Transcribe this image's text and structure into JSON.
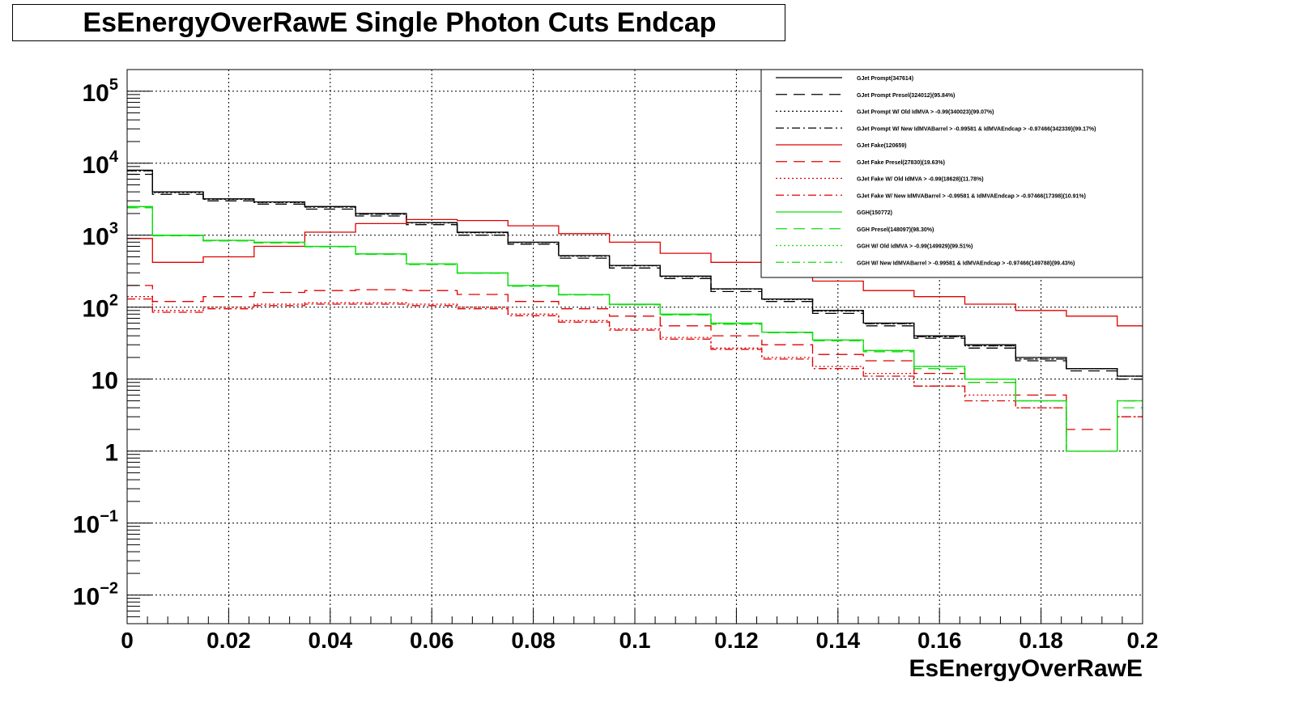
{
  "title": "EsEnergyOverRawE Single Photon Cuts Endcap",
  "chart_data": {
    "type": "line",
    "style": "step histogram",
    "xlabel": "EsEnergyOverRawE",
    "ylabel": "",
    "xlim": [
      0,
      0.2
    ],
    "ylim": [
      0.004,
      200000
    ],
    "yscale": "log",
    "grid": true,
    "legend_position": "top-right",
    "x_ticks": [
      "0",
      "0.02",
      "0.04",
      "0.06",
      "0.08",
      "0.1",
      "0.12",
      "0.14",
      "0.16",
      "0.18",
      "0.2"
    ],
    "y_ticks": [
      {
        "base": "10",
        "exp": "5"
      },
      {
        "base": "10",
        "exp": "4"
      },
      {
        "base": "10",
        "exp": "3"
      },
      {
        "base": "10",
        "exp": "2"
      },
      {
        "base": "10",
        "exp": ""
      },
      {
        "base": "1",
        "exp": ""
      },
      {
        "base": "10",
        "exp": "−1"
      },
      {
        "base": "10",
        "exp": "−2"
      }
    ],
    "x": [
      0.0,
      0.01,
      0.02,
      0.03,
      0.04,
      0.05,
      0.06,
      0.07,
      0.08,
      0.09,
      0.1,
      0.11,
      0.12,
      0.13,
      0.14,
      0.15,
      0.16,
      0.17,
      0.18,
      0.19,
      0.2
    ],
    "series": [
      {
        "name": "GJet Prompt(347614)",
        "color": "#000000",
        "dash": "solid",
        "values": [
          8000,
          4000,
          3200,
          2900,
          2500,
          2000,
          1500,
          1100,
          800,
          520,
          380,
          270,
          180,
          130,
          90,
          60,
          40,
          30,
          20,
          14,
          11
        ]
      },
      {
        "name": "GJet Prompt Presel(324012)(95.84%)",
        "color": "#000000",
        "dash": "dashed",
        "values": [
          7000,
          3700,
          3000,
          2700,
          2300,
          1850,
          1400,
          1000,
          750,
          480,
          350,
          250,
          165,
          120,
          82,
          55,
          37,
          27,
          18,
          13,
          10
        ]
      },
      {
        "name": "GJet Prompt W/ Old IdMVA > -0.99(340023)(99.07%)",
        "color": "#000000",
        "dash": "dotted",
        "values": [
          7800,
          3900,
          3150,
          2850,
          2450,
          1950,
          1480,
          1080,
          790,
          510,
          375,
          265,
          178,
          128,
          88,
          59,
          39,
          29,
          19,
          14,
          11
        ]
      },
      {
        "name": "GJet Prompt W/ New IdMVABarrel > -0.99581 & IdMVAEndcap > -0.97466(342339)(99.17%)",
        "color": "#000000",
        "dash": "dashdot",
        "values": [
          7850,
          3950,
          3170,
          2870,
          2470,
          1960,
          1490,
          1090,
          795,
          515,
          378,
          268,
          179,
          129,
          89,
          59,
          39,
          29,
          19,
          14,
          11
        ]
      },
      {
        "name": "GJet Fake(120659)",
        "color": "#e00000",
        "dash": "solid",
        "values": [
          900,
          420,
          500,
          700,
          1100,
          1450,
          1650,
          1600,
          1350,
          1050,
          800,
          560,
          420,
          300,
          230,
          170,
          140,
          110,
          90,
          75,
          55
        ]
      },
      {
        "name": "GJet Fake Presel(27830)(19.63%)",
        "color": "#e00000",
        "dash": "dashed",
        "values": [
          200,
          120,
          140,
          160,
          170,
          175,
          170,
          150,
          120,
          95,
          75,
          55,
          40,
          30,
          22,
          18,
          12,
          9,
          6,
          2,
          5
        ]
      },
      {
        "name": "GJet Fake W/ Old IdMVA > -0.99(18628)(11.78%)",
        "color": "#e00000",
        "dash": "dotted",
        "values": [
          140,
          90,
          100,
          110,
          115,
          115,
          110,
          100,
          80,
          65,
          50,
          38,
          27,
          20,
          15,
          12,
          8,
          6,
          4,
          1,
          3
        ]
      },
      {
        "name": "GJet Fake W/ New IdMVABarrel > -0.99581 & IdMVAEndcap > -0.97466(17398)(10.91%)",
        "color": "#e00000",
        "dash": "dashdot",
        "values": [
          130,
          85,
          95,
          105,
          110,
          110,
          105,
          95,
          76,
          62,
          48,
          36,
          26,
          19,
          14,
          11,
          8,
          5,
          4,
          1,
          3
        ]
      },
      {
        "name": "GGH(150772)",
        "color": "#10dd10",
        "dash": "solid",
        "values": [
          2500,
          1000,
          850,
          800,
          700,
          550,
          400,
          300,
          200,
          150,
          110,
          80,
          60,
          45,
          35,
          25,
          15,
          10,
          5,
          1,
          5
        ]
      },
      {
        "name": "GGH Presel(148097)(98.30%)",
        "color": "#10dd10",
        "dash": "dashed",
        "values": [
          2400,
          980,
          830,
          780,
          690,
          540,
          390,
          295,
          195,
          148,
          108,
          78,
          58,
          44,
          34,
          24,
          14,
          9,
          5,
          1,
          4
        ]
      },
      {
        "name": "GGH W/ Old IdMVA > -0.99(149929)(99.51%)",
        "color": "#10dd10",
        "dash": "dotted",
        "values": [
          2480,
          995,
          845,
          795,
          698,
          548,
          398,
          298,
          199,
          149,
          109,
          79,
          59,
          45,
          35,
          25,
          15,
          10,
          5,
          1,
          5
        ]
      },
      {
        "name": "GGH W/ New IdMVABarrel > -0.99581 & IdMVAEndcap > -0.97466(149788)(99.43%)",
        "color": "#10dd10",
        "dash": "dashdot",
        "values": [
          2470,
          990,
          843,
          793,
          697,
          547,
          397,
          297,
          198,
          149,
          109,
          79,
          59,
          45,
          35,
          25,
          15,
          10,
          5,
          1,
          5
        ]
      }
    ]
  }
}
